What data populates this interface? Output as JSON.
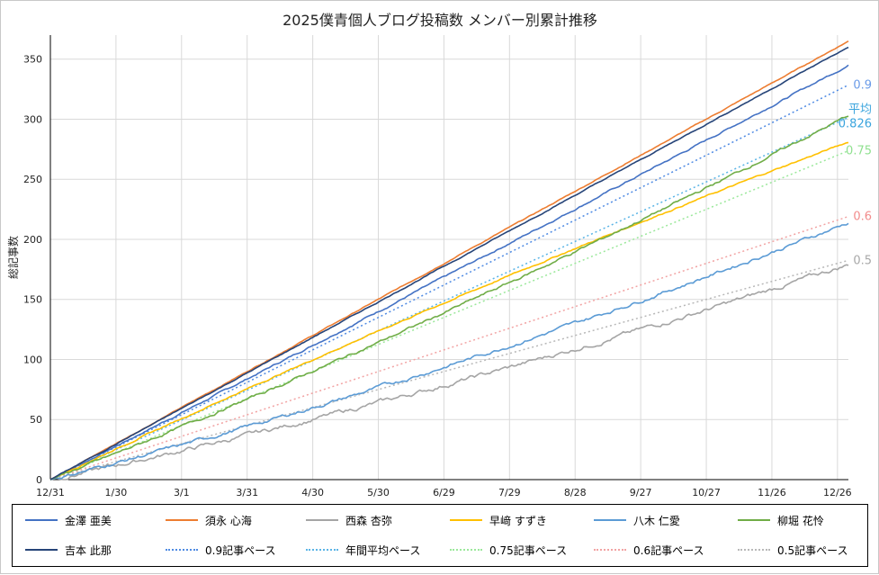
{
  "chart_data": {
    "type": "line",
    "title": "2025僕青個人ブログ投稿数 メンバー別累計推移",
    "xlabel": "",
    "ylabel": "総記事数",
    "x_tick_labels": [
      "12/31",
      "1/30",
      "3/1",
      "3/31",
      "4/30",
      "5/30",
      "6/29",
      "7/29",
      "8/28",
      "9/27",
      "10/27",
      "11/26",
      "12/26"
    ],
    "x_tick_days": [
      0,
      30,
      60,
      90,
      120,
      150,
      180,
      210,
      240,
      270,
      300,
      330,
      360
    ],
    "xlim": [
      0,
      365
    ],
    "ylim": [
      0,
      370
    ],
    "y_ticks": [
      0,
      50,
      100,
      150,
      200,
      250,
      300,
      350
    ],
    "grid": true,
    "legend_position": "bottom",
    "series": [
      {
        "name": "金澤 亜美",
        "color": "#4472c4",
        "style": "solid",
        "end": 345,
        "shape": "near-linear",
        "noise": 1.0
      },
      {
        "name": "須永 心海",
        "color": "#ed7d31",
        "style": "solid",
        "end": 365,
        "shape": "linear",
        "noise": 0.5
      },
      {
        "name": "西森 杏弥",
        "color": "#a5a5a5",
        "style": "solid",
        "end": 179,
        "shape": "late",
        "noise": 2.5
      },
      {
        "name": "早﨑 すずき",
        "color": "#ffc000",
        "style": "solid",
        "end": 281,
        "shape": "concave",
        "noise": 0.8
      },
      {
        "name": "八木 仁愛",
        "color": "#5b9bd5",
        "style": "solid",
        "end": 214,
        "shape": "late",
        "noise": 2.0
      },
      {
        "name": "柳堀 花怜",
        "color": "#70ad47",
        "style": "solid",
        "end": 303,
        "shape": "slightly-late",
        "noise": 1.5
      },
      {
        "name": "吉本 此那",
        "color": "#264478",
        "style": "solid",
        "end": 360,
        "shape": "linear",
        "noise": 0.5
      },
      {
        "name": "0.9記事ペース",
        "color": "#4e8ae3",
        "style": "dotted",
        "rate": 0.9
      },
      {
        "name": "年間平均ペース",
        "color": "#5ab4e6",
        "style": "dotted",
        "rate": 0.826
      },
      {
        "name": "0.75記事ペース",
        "color": "#9be89b",
        "style": "dotted",
        "rate": 0.75
      },
      {
        "name": "0.6記事ペース",
        "color": "#f2a3a3",
        "style": "dotted",
        "rate": 0.6
      },
      {
        "name": "0.5記事ペース",
        "color": "#b8b8b8",
        "style": "dotted",
        "rate": 0.5
      }
    ],
    "line_labels": [
      {
        "text": "0.9",
        "color": "#6a9be8",
        "rate": 0.9
      },
      {
        "text": "平均",
        "color": "#3aa4dd",
        "rate": 0.826,
        "line": 1
      },
      {
        "text": "0.826",
        "color": "#3aa4dd",
        "rate": 0.826,
        "line": 2
      },
      {
        "text": "0.75",
        "color": "#8fe08f",
        "rate": 0.75
      },
      {
        "text": "0.6",
        "color": "#f28c8c",
        "rate": 0.6
      },
      {
        "text": "0.5",
        "color": "#a8a8a8",
        "rate": 0.5
      }
    ]
  }
}
